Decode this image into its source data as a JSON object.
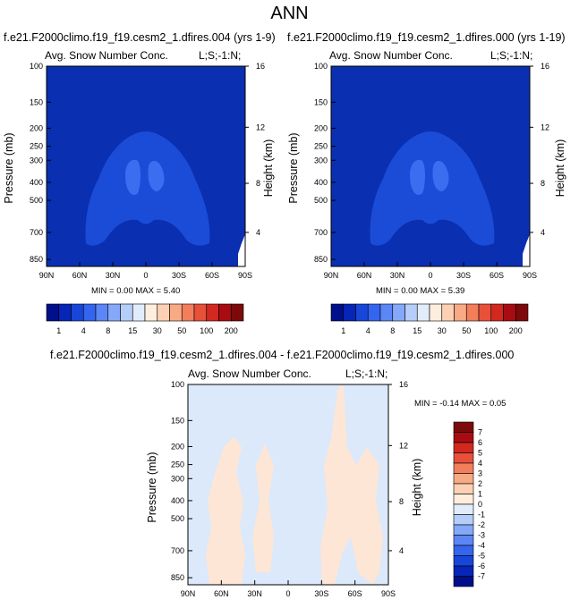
{
  "page": {
    "title": "ANN"
  },
  "colors": {
    "blue_dark": "#002fb8",
    "blue_mid": "#1b4fd8",
    "blue_light": "#3a6df0",
    "diff_light_blue": "#dbe9fb",
    "diff_peach": "#fde6d6"
  },
  "chart_data": [
    {
      "type": "heatmap",
      "title": "f.e21.F2000climo.f19_f19.cesm2_1.dfires.004 (yrs 1-9)",
      "left_label": "Avg. Snow Number Conc.",
      "right_label": "L;S;-1:N;",
      "xlabel": "",
      "ylabel": "Pressure (mb)",
      "y2label": "Height (km)",
      "x_ticks": [
        "90N",
        "60N",
        "30N",
        "0",
        "30S",
        "60S",
        "90S"
      ],
      "y_ticks": [
        "100",
        "150",
        "200",
        "250",
        "300",
        "400",
        "500",
        "700",
        "850"
      ],
      "y2_ticks": [
        "16",
        "12",
        "8",
        "4"
      ],
      "stats": "MIN =  0.00  MAX =  5.40",
      "colorbar": {
        "orientation": "horizontal",
        "labels": [
          "1",
          "4",
          "8",
          "15",
          "30",
          "50",
          "100",
          "200"
        ],
        "colors": [
          "#000f8a",
          "#0725b6",
          "#1746d8",
          "#3565ee",
          "#5b86f5",
          "#86a8f8",
          "#b4cdf9",
          "#e2edfb",
          "#fdeede",
          "#fcd0b3",
          "#f8aa84",
          "#f27e5c",
          "#e8503a",
          "#d22820",
          "#a80c12",
          "#7c0a0a"
        ]
      }
    },
    {
      "type": "heatmap",
      "title": "f.e21.F2000climo.f19_f19.cesm2_1.dfires.000 (yrs 1-19)",
      "left_label": "Avg. Snow Number Conc.",
      "right_label": "L;S;-1:N;",
      "xlabel": "",
      "ylabel": "Pressure (mb)",
      "y2label": "Height (km)",
      "x_ticks": [
        "90N",
        "60N",
        "30N",
        "0",
        "30S",
        "60S",
        "90S"
      ],
      "y_ticks": [
        "100",
        "150",
        "200",
        "250",
        "300",
        "400",
        "500",
        "700",
        "850"
      ],
      "y2_ticks": [
        "16",
        "12",
        "8",
        "4"
      ],
      "stats": "MIN =  0.00  MAX =  5.39",
      "colorbar": {
        "orientation": "horizontal",
        "labels": [
          "1",
          "4",
          "8",
          "15",
          "30",
          "50",
          "100",
          "200"
        ],
        "colors": [
          "#000f8a",
          "#0725b6",
          "#1746d8",
          "#3565ee",
          "#5b86f5",
          "#86a8f8",
          "#b4cdf9",
          "#e2edfb",
          "#fdeede",
          "#fcd0b3",
          "#f8aa84",
          "#f27e5c",
          "#e8503a",
          "#d22820",
          "#a80c12",
          "#7c0a0a"
        ]
      }
    },
    {
      "type": "heatmap",
      "title": "f.e21.F2000climo.f19_f19.cesm2_1.dfires.004 - f.e21.F2000climo.f19_f19.cesm2_1.dfires.000",
      "left_label": "Avg. Snow Number Conc.",
      "right_label": "L;S;-1:N;",
      "xlabel": "",
      "ylabel": "Pressure (mb)",
      "y2label": "Height (km)",
      "x_ticks": [
        "90N",
        "60N",
        "30N",
        "0",
        "30S",
        "60S",
        "90S"
      ],
      "y_ticks": [
        "100",
        "150",
        "200",
        "250",
        "300",
        "400",
        "500",
        "700",
        "850"
      ],
      "y2_ticks": [
        "16",
        "12",
        "8",
        "4"
      ],
      "stats": "MIN = -0.14  MAX =  0.05",
      "colorbar": {
        "orientation": "vertical",
        "labels": [
          "7",
          "6",
          "5",
          "4",
          "3",
          "2",
          "1",
          "0",
          "-1",
          "-2",
          "-3",
          "-4",
          "-5",
          "-6",
          "-7"
        ],
        "colors": [
          "#7c0a0a",
          "#a80c12",
          "#d22820",
          "#e8503a",
          "#f27e5c",
          "#f8aa84",
          "#fcd0b3",
          "#fdeede",
          "#e2edfb",
          "#b4cdf9",
          "#86a8f8",
          "#5b86f5",
          "#3565ee",
          "#1746d8",
          "#0725b6",
          "#000f8a"
        ]
      }
    }
  ]
}
